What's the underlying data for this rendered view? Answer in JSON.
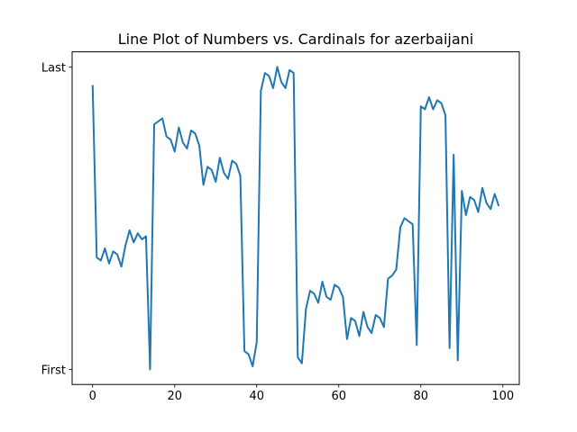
{
  "chart_data": {
    "type": "line",
    "title": "Line Plot of Numbers vs. Cardinals for azerbaijani",
    "xlabel": "",
    "ylabel": "",
    "xlim": [
      -5,
      104
    ],
    "ylim": [
      0.0,
      1.0
    ],
    "x_ticks": [
      0,
      20,
      40,
      60,
      80,
      100
    ],
    "y_ticks": [
      {
        "value": 0.0,
        "label": "First"
      },
      {
        "value": 1.0,
        "label": "Last"
      }
    ],
    "grid": false,
    "series": [
      {
        "color": "#1f77b4",
        "x": [
          0,
          1,
          2,
          3,
          4,
          5,
          6,
          7,
          8,
          9,
          10,
          11,
          12,
          13,
          14,
          15,
          16,
          17,
          18,
          19,
          20,
          21,
          22,
          23,
          24,
          25,
          26,
          27,
          28,
          29,
          30,
          31,
          32,
          33,
          34,
          35,
          36,
          37,
          38,
          39,
          40,
          41,
          42,
          43,
          44,
          45,
          46,
          47,
          48,
          49,
          50,
          51,
          52,
          53,
          54,
          55,
          56,
          57,
          58,
          59,
          60,
          61,
          62,
          63,
          64,
          65,
          66,
          67,
          68,
          69,
          70,
          71,
          72,
          73,
          74,
          75,
          76,
          77,
          78,
          79,
          80,
          81,
          82,
          83,
          84,
          85,
          86,
          87,
          88,
          89,
          90,
          91,
          92,
          93,
          94,
          95,
          96,
          97,
          98,
          99
        ],
        "values": [
          0.94,
          0.37,
          0.36,
          0.4,
          0.35,
          0.39,
          0.38,
          0.34,
          0.41,
          0.46,
          0.42,
          0.45,
          0.43,
          0.44,
          0.0,
          0.81,
          0.82,
          0.83,
          0.77,
          0.76,
          0.72,
          0.8,
          0.75,
          0.73,
          0.79,
          0.78,
          0.74,
          0.61,
          0.67,
          0.66,
          0.62,
          0.7,
          0.65,
          0.63,
          0.69,
          0.68,
          0.64,
          0.06,
          0.05,
          0.01,
          0.09,
          0.92,
          0.98,
          0.97,
          0.93,
          1.0,
          0.95,
          0.93,
          0.99,
          0.98,
          0.04,
          0.02,
          0.2,
          0.26,
          0.25,
          0.22,
          0.29,
          0.24,
          0.23,
          0.28,
          0.27,
          0.24,
          0.1,
          0.17,
          0.16,
          0.11,
          0.19,
          0.14,
          0.12,
          0.18,
          0.17,
          0.14,
          0.3,
          0.31,
          0.33,
          0.47,
          0.5,
          0.49,
          0.48,
          0.08,
          0.87,
          0.86,
          0.9,
          0.86,
          0.89,
          0.88,
          0.84,
          0.07,
          0.71,
          0.03,
          0.59,
          0.51,
          0.57,
          0.56,
          0.52,
          0.6,
          0.55,
          0.53,
          0.58,
          0.54
        ]
      }
    ]
  }
}
